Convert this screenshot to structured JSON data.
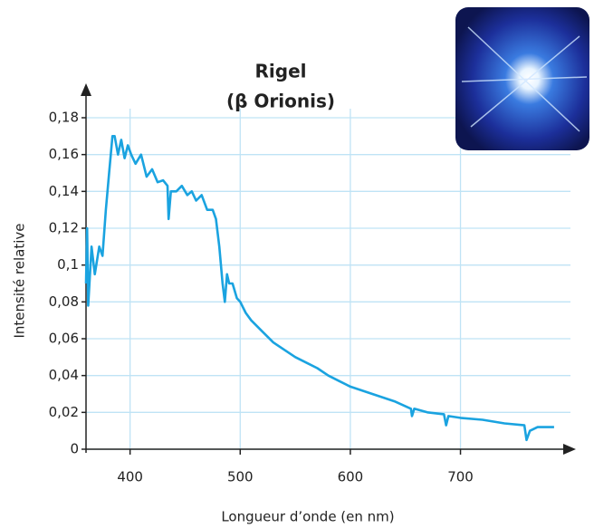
{
  "chart_data": {
    "type": "line",
    "title": "Rigel",
    "subtitle": "(β Orionis)",
    "x_label": "Longueur d’onde (en nm)",
    "y_label": "Intensité relative",
    "x": [
      360,
      361,
      362,
      365,
      368,
      372,
      375,
      378,
      381,
      384,
      386,
      389,
      392,
      395,
      398,
      401,
      405,
      410,
      415,
      420,
      425,
      430,
      434,
      435,
      437,
      442,
      447,
      452,
      456,
      460,
      465,
      470,
      475,
      478,
      481,
      484,
      486,
      488,
      490,
      493,
      497,
      500,
      505,
      510,
      520,
      530,
      540,
      550,
      560,
      570,
      580,
      590,
      600,
      620,
      640,
      655,
      656,
      658,
      670,
      685,
      687,
      689,
      700,
      720,
      740,
      758,
      760,
      763,
      770,
      785
    ],
    "series": [
      {
        "name": "Rigel",
        "color": "#1aa3e0",
        "values": [
          0.09,
          0.12,
          0.078,
          0.11,
          0.095,
          0.11,
          0.105,
          0.13,
          0.15,
          0.17,
          0.17,
          0.16,
          0.168,
          0.158,
          0.165,
          0.16,
          0.155,
          0.16,
          0.148,
          0.152,
          0.145,
          0.146,
          0.143,
          0.125,
          0.14,
          0.14,
          0.143,
          0.138,
          0.14,
          0.135,
          0.138,
          0.13,
          0.13,
          0.125,
          0.11,
          0.09,
          0.08,
          0.095,
          0.09,
          0.09,
          0.082,
          0.08,
          0.074,
          0.07,
          0.064,
          0.058,
          0.054,
          0.05,
          0.047,
          0.044,
          0.04,
          0.037,
          0.034,
          0.03,
          0.026,
          0.022,
          0.018,
          0.022,
          0.02,
          0.019,
          0.013,
          0.018,
          0.017,
          0.016,
          0.014,
          0.013,
          0.005,
          0.01,
          0.012,
          0.012
        ]
      }
    ],
    "xlim": [
      360,
      790
    ],
    "ylim": [
      0,
      0.18
    ],
    "xticks": [
      400,
      500,
      600,
      700
    ],
    "yticks": [
      0,
      {
        "value": 0.02,
        "label": "0,02"
      },
      {
        "value": 0.04,
        "label": "0,04"
      },
      {
        "value": 0.06,
        "label": "0,06"
      },
      {
        "value": 0.08,
        "label": "0,08"
      },
      {
        "value": 0.1,
        "label": "0,1"
      },
      {
        "value": 0.12,
        "label": "0,12"
      },
      {
        "value": 0.14,
        "label": "0,14"
      },
      {
        "value": 0.16,
        "label": "0,16"
      },
      {
        "value": 0.18,
        "label": "0,18"
      }
    ],
    "grid": true,
    "grid_color": "#bfe3f5"
  }
}
